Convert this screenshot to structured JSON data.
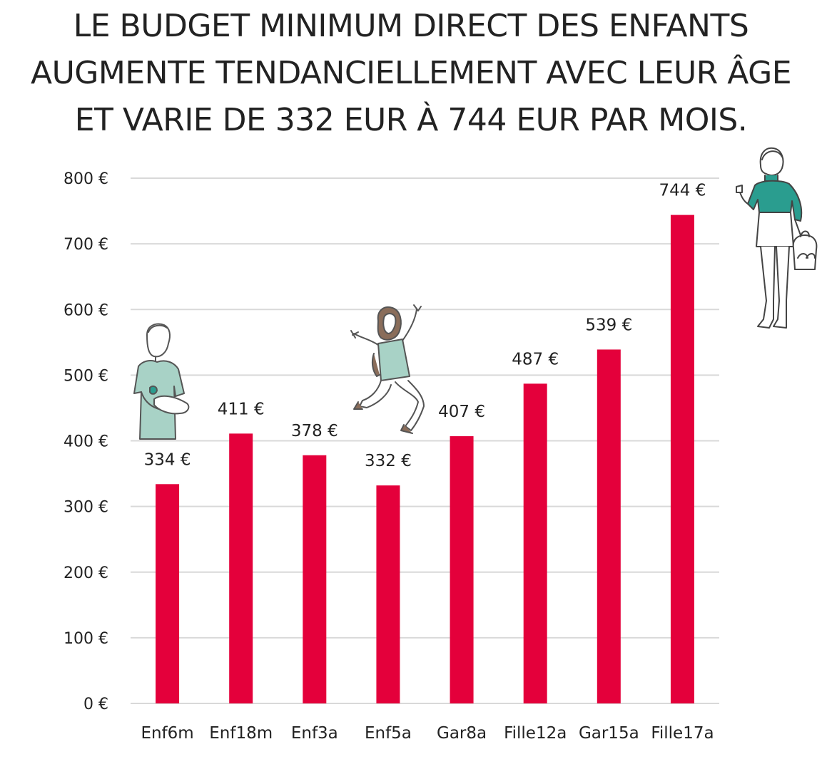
{
  "title_lines": [
    "LE BUDGET MINIMUM DIRECT DES ENFANTS",
    "AUGMENTE TENDANCIELLEMENT AVEC LEUR ÂGE",
    "ET VARIE DE 332 EUR À 744 EUR PAR MOIS."
  ],
  "colors": {
    "bar": "#e4003b",
    "grid": "#d9d9d9",
    "text": "#222222",
    "illustration_accent": "#a8d2c6",
    "illustration_accent_dark": "#2a9d8f"
  },
  "chart_data": {
    "type": "bar",
    "title": "LE BUDGET MINIMUM DIRECT DES ENFANTS AUGMENTE TENDANCIELLEMENT AVEC LEUR ÂGE ET VARIE DE 332 EUR À 744 EUR PAR MOIS.",
    "categories": [
      "Enf6m",
      "Enf18m",
      "Enf3a",
      "Enf5a",
      "Gar8a",
      "Fille12a",
      "Gar15a",
      "Fille17a"
    ],
    "values": [
      334,
      411,
      378,
      332,
      407,
      487,
      539,
      744
    ],
    "value_labels": [
      "334 €",
      "411 €",
      "378 €",
      "332 €",
      "407 €",
      "487 €",
      "539 €",
      "744 €"
    ],
    "ylim": [
      0,
      800
    ],
    "yticks": [
      0,
      100,
      200,
      300,
      400,
      500,
      600,
      700,
      800
    ],
    "ytick_labels": [
      "0 €",
      "100 €",
      "200 €",
      "300 €",
      "400 €",
      "500 €",
      "600 €",
      "700 €",
      "800 €"
    ],
    "xlabel": "",
    "ylabel": "",
    "grid": true,
    "legend": "none"
  },
  "illustrations": [
    "man-holding-baby-icon",
    "jumping-child-icon",
    "teenage-girl-icon"
  ]
}
